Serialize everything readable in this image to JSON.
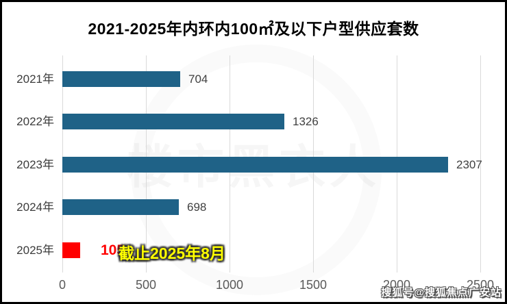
{
  "title": "2021-2025年内环内100㎡及以下户型供应套数",
  "chart_data": {
    "type": "bar",
    "orientation": "horizontal",
    "title": "2021-2025年内环内100㎡及以下户型供应套数",
    "categories": [
      "2021年",
      "2022年",
      "2023年",
      "2024年",
      "2025年"
    ],
    "values": [
      704,
      1326,
      2307,
      698,
      105
    ],
    "xlim": [
      0,
      2500
    ],
    "x_ticks": [
      0,
      500,
      1000,
      1500,
      2000,
      2500
    ],
    "grid": true,
    "legend": false,
    "bar_color": "#1f6287",
    "highlight_index": 4,
    "highlight_color": "#ff0000",
    "value_label_color": "#404040",
    "highlight_value_color": "#ff0000",
    "annotation": {
      "text": "截止2025年8月",
      "row": "2025年",
      "color": "#ffff00",
      "outline_color": "#2b2b2b"
    }
  },
  "watermarks": {
    "center": "楼市黑衣人",
    "bottom_right": "搜狐号@搜狐焦点广安站"
  }
}
